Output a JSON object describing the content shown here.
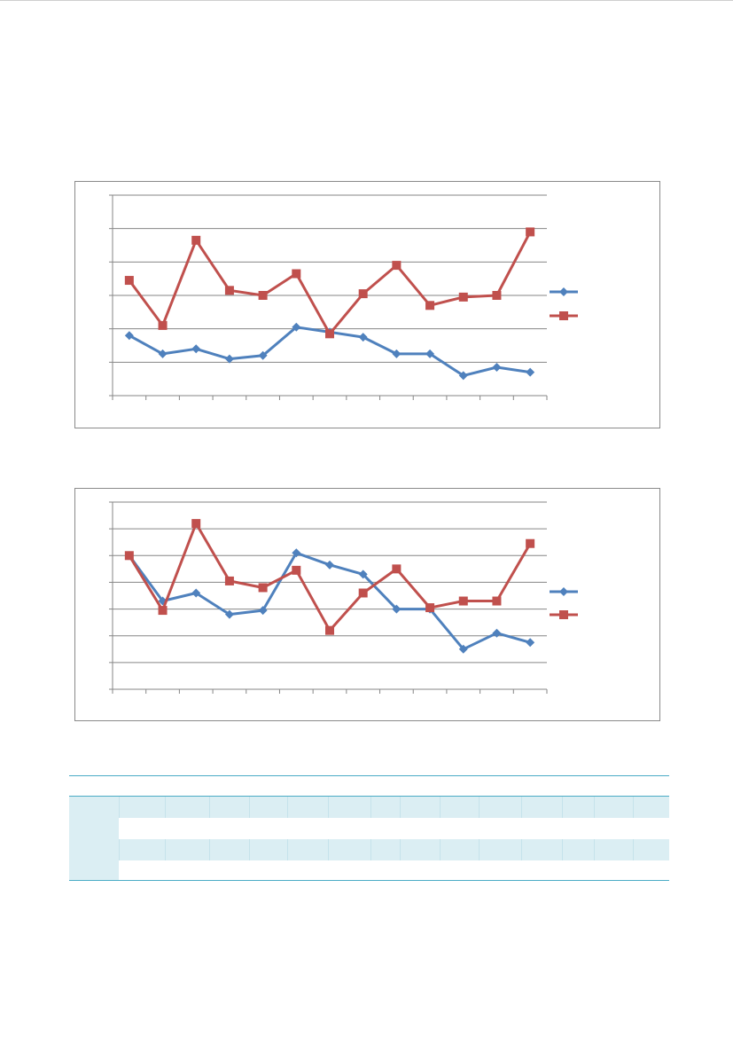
{
  "colors": {
    "series_1": "#4f81bd",
    "series_2": "#c0504d",
    "gridline": "#868686",
    "frame": "#8a8a8a",
    "table_rule": "#4bacc6",
    "table_band": "#dbeef3"
  },
  "chart_data": [
    {
      "type": "line",
      "title": "",
      "xlabel": "",
      "ylabel": "",
      "x": [
        1,
        2,
        3,
        4,
        5,
        6,
        7,
        8,
        9,
        10,
        11,
        12,
        13
      ],
      "ylim": [
        0,
        6
      ],
      "gridlines": 6,
      "grid": true,
      "legend": "right",
      "tick_labels_visible": false,
      "series": [
        {
          "color": "#4f81bd",
          "marker": "diamond",
          "values": [
            1.8,
            1.25,
            1.4,
            1.1,
            1.2,
            2.05,
            1.9,
            1.75,
            1.25,
            1.25,
            0.6,
            0.85,
            0.7
          ]
        },
        {
          "color": "#c0504d",
          "marker": "square",
          "values": [
            3.45,
            2.1,
            4.65,
            3.15,
            3.0,
            3.65,
            1.85,
            3.05,
            3.9,
            2.7,
            2.95,
            3.0,
            4.9
          ]
        }
      ]
    },
    {
      "type": "line",
      "title": "",
      "xlabel": "",
      "ylabel": "",
      "x": [
        1,
        2,
        3,
        4,
        5,
        6,
        7,
        8,
        9,
        10,
        11,
        12,
        13
      ],
      "ylim": [
        0,
        7
      ],
      "gridlines": 7,
      "grid": true,
      "legend": "right",
      "tick_labels_visible": false,
      "series": [
        {
          "color": "#4f81bd",
          "marker": "diamond",
          "values": [
            5.0,
            3.3,
            3.6,
            2.8,
            2.95,
            5.1,
            4.65,
            4.3,
            3.0,
            3.0,
            1.5,
            2.1,
            1.75
          ]
        },
        {
          "color": "#c0504d",
          "marker": "square",
          "values": [
            5.0,
            2.95,
            6.2,
            4.05,
            3.8,
            4.45,
            2.2,
            3.6,
            4.5,
            3.05,
            3.3,
            3.3,
            5.45
          ]
        }
      ]
    }
  ]
}
